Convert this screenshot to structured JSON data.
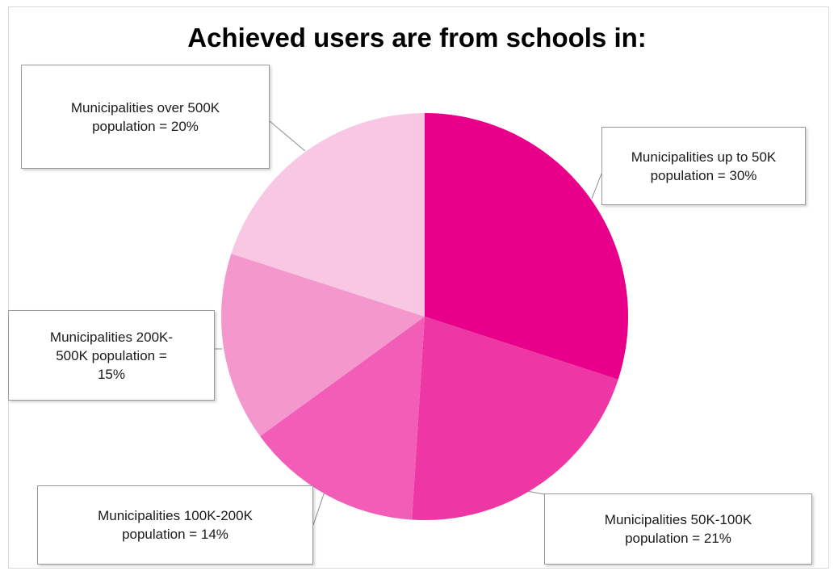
{
  "chart_data": {
    "type": "pie",
    "title": "Achieved users are from schools in:",
    "slices": [
      {
        "label": "Municipalities up to 50K\npopulation = 30%",
        "value": 30,
        "color": "#e8008a"
      },
      {
        "label": "Municipalities  50K-100K\npopulation = 21%",
        "value": 21,
        "color": "#ee36a4"
      },
      {
        "label": "Municipalities  100K-200K\npopulation = 14%",
        "value": 14,
        "color": "#f25db7"
      },
      {
        "label": "Municipalities  200K-\n500K  population =\n15%",
        "value": 15,
        "color": "#f497cc"
      },
      {
        "label": "Municipalities over 500K\npopulation = 20%",
        "value": 20,
        "color": "#f8c7e3"
      }
    ],
    "legend": "none"
  }
}
